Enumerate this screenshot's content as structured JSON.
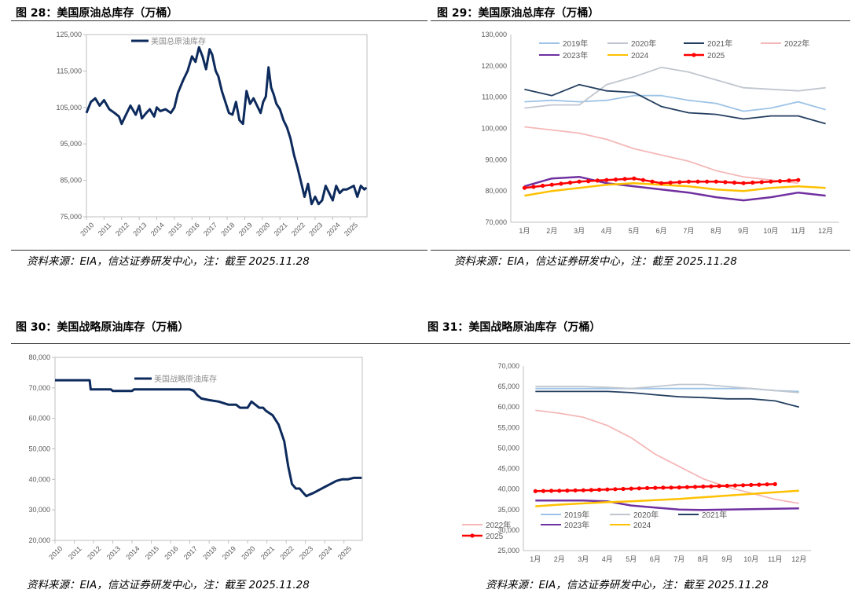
{
  "figures": [
    {
      "title": "图 28：美国原油总库存（万桶）",
      "source": "资料来源：EIA，信达证券研发中心，注：截至 2025.11.28"
    },
    {
      "title": "图 29：美国原油总库存（万桶）",
      "source": "资料来源：EIA，信达证券研发中心，注：截至 2025.11.28"
    },
    {
      "title": "图 30：美国战略原油库存（万桶）",
      "source": "资料来源：EIA，信达证券研发中心，注：截至 2025.11.28"
    },
    {
      "title": "图 31：美国战略原油库存（万桶）",
      "source": "资料来源：EIA，信达证券研发中心，注：截至 2025.11.28"
    }
  ],
  "chart_data": [
    {
      "type": "line",
      "legend_position": "top-center",
      "grid": false,
      "x_tick_labels": [
        "2010",
        "2011",
        "2012",
        "2013",
        "2014",
        "2015",
        "2016",
        "2017",
        "2018",
        "2019",
        "2020",
        "2021",
        "2022",
        "2023",
        "2024",
        "2025"
      ],
      "y_tick_labels": [
        "75,000",
        "85,000",
        "95,000",
        "105,000",
        "115,000",
        "125,000"
      ],
      "ylim": [
        75000,
        125000
      ],
      "xlim": [
        2010,
        2025.95
      ],
      "series": [
        {
          "name": "美国总原油库存",
          "color": "#0d2a5c",
          "x": [
            2010.0,
            2010.25,
            2010.5,
            2010.75,
            2011.0,
            2011.3,
            2011.6,
            2011.85,
            2012.0,
            2012.2,
            2012.5,
            2012.8,
            2013.0,
            2013.15,
            2013.4,
            2013.6,
            2013.85,
            2014.0,
            2014.2,
            2014.5,
            2014.8,
            2015.0,
            2015.2,
            2015.5,
            2015.75,
            2016.0,
            2016.2,
            2016.4,
            2016.6,
            2016.8,
            2017.0,
            2017.15,
            2017.35,
            2017.5,
            2017.7,
            2017.9,
            2018.1,
            2018.3,
            2018.5,
            2018.7,
            2018.9,
            2019.1,
            2019.3,
            2019.5,
            2019.7,
            2019.9,
            2020.05,
            2020.2,
            2020.35,
            2020.5,
            2020.65,
            2020.8,
            2021.0,
            2021.2,
            2021.4,
            2021.6,
            2021.8,
            2022.0,
            2022.2,
            2022.4,
            2022.6,
            2022.8,
            2023.0,
            2023.2,
            2023.4,
            2023.6,
            2023.8,
            2024.0,
            2024.2,
            2024.4,
            2024.6,
            2024.8,
            2025.0,
            2025.2,
            2025.4,
            2025.6,
            2025.8,
            2025.92
          ],
          "y": [
            103500,
            106500,
            107500,
            105500,
            107000,
            104500,
            103500,
            102500,
            100500,
            102500,
            105500,
            103000,
            105500,
            102000,
            103500,
            104500,
            102500,
            105000,
            104000,
            104500,
            103500,
            105000,
            109000,
            112500,
            115000,
            119000,
            117500,
            121500,
            119000,
            115500,
            121000,
            119500,
            115000,
            113500,
            109500,
            106500,
            103500,
            103000,
            106500,
            101500,
            100500,
            109500,
            106000,
            107500,
            105500,
            103500,
            106500,
            108000,
            116000,
            110500,
            108500,
            106000,
            104500,
            101500,
            99500,
            96500,
            92000,
            88500,
            84500,
            80500,
            84000,
            78500,
            80500,
            78500,
            79500,
            83500,
            81500,
            79500,
            83500,
            81500,
            82500,
            82500,
            83000,
            83500,
            80500,
            83500,
            82500,
            83000
          ]
        }
      ]
    },
    {
      "type": "line",
      "legend_position": "top",
      "grid": false,
      "categories": [
        "1月",
        "2月",
        "3月",
        "4月",
        "5月",
        "6月",
        "7月",
        "8月",
        "9月",
        "10月",
        "11月",
        "12月"
      ],
      "y_tick_labels": [
        "70,000",
        "80,000",
        "90,000",
        "100,000",
        "110,000",
        "120,000",
        "130,000"
      ],
      "ylim": [
        70000,
        130000
      ],
      "series": [
        {
          "name": "2019年",
          "color": "#9dc3e6",
          "values": [
            108500,
            109000,
            108500,
            109000,
            110500,
            110500,
            109000,
            108000,
            105500,
            106500,
            108500,
            106000
          ]
        },
        {
          "name": "2020年",
          "color": "#c0c6cf",
          "values": [
            106500,
            107500,
            107500,
            114000,
            116500,
            119500,
            118000,
            115500,
            113000,
            112500,
            112000,
            113000
          ]
        },
        {
          "name": "2021年",
          "color": "#243f60",
          "values": [
            112500,
            110500,
            114000,
            112000,
            111500,
            107000,
            105000,
            104500,
            103000,
            104000,
            104000,
            101500
          ]
        },
        {
          "name": "2022年",
          "color": "#f5b8b8",
          "values": [
            100500,
            99500,
            98500,
            96500,
            93500,
            91500,
            89500,
            86500,
            84500,
            83500,
            82500,
            null
          ]
        },
        {
          "name": "2023年",
          "color": "#7030a0",
          "values": [
            81500,
            84000,
            84500,
            82500,
            81500,
            80500,
            79500,
            78000,
            77000,
            78000,
            79500,
            78500
          ]
        },
        {
          "name": "2024",
          "color": "#ffc000",
          "values": [
            78500,
            80000,
            81000,
            82000,
            82500,
            82000,
            81500,
            80500,
            80000,
            81000,
            81500,
            81000
          ]
        },
        {
          "name": "2025",
          "color": "#ff0000",
          "values": [
            81000,
            82000,
            83000,
            83500,
            84000,
            82500,
            83000,
            83000,
            82500,
            83000,
            83500,
            null
          ]
        }
      ]
    },
    {
      "type": "line",
      "legend_position": "top-center",
      "grid": false,
      "x_tick_labels": [
        "2010",
        "2011",
        "2012",
        "2013",
        "2014",
        "2015",
        "2016",
        "2017",
        "2018",
        "2019",
        "2020",
        "2021",
        "2022",
        "2023",
        "2024",
        "2025"
      ],
      "y_tick_labels": [
        "20,000",
        "30,000",
        "40,000",
        "50,000",
        "60,000",
        "70,000",
        "80,000"
      ],
      "ylim": [
        20000,
        80000
      ],
      "xlim": [
        2010,
        2025.95
      ],
      "series": [
        {
          "name": "美国战略原油库存",
          "color": "#0d2a5c",
          "x": [
            2010.0,
            2011.8,
            2011.85,
            2012.9,
            2013.0,
            2014.0,
            2014.1,
            2015.6,
            2015.7,
            2017.0,
            2017.2,
            2017.4,
            2017.6,
            2018.0,
            2018.5,
            2019.0,
            2019.4,
            2019.6,
            2020.0,
            2020.2,
            2020.6,
            2020.8,
            2020.95,
            2021.3,
            2021.6,
            2021.9,
            2022.1,
            2022.3,
            2022.5,
            2022.7,
            2022.9,
            2023.05,
            2023.2,
            2023.4,
            2023.7,
            2024.0,
            2024.3,
            2024.6,
            2024.9,
            2025.2,
            2025.5,
            2025.92
          ],
          "y": [
            72500,
            72500,
            69500,
            69500,
            69000,
            69000,
            69500,
            69500,
            69500,
            69500,
            69000,
            67500,
            66500,
            66000,
            65500,
            64500,
            64500,
            63500,
            63500,
            65500,
            63500,
            63500,
            62500,
            61000,
            58000,
            52500,
            44500,
            38500,
            37000,
            37000,
            35500,
            34500,
            35000,
            35500,
            36500,
            37500,
            38500,
            39500,
            40000,
            40000,
            40500,
            40500
          ]
        }
      ]
    },
    {
      "type": "line",
      "legend_position": "bottom",
      "grid": false,
      "categories": [
        "1月",
        "2月",
        "3月",
        "4月",
        "5月",
        "6月",
        "7月",
        "8月",
        "9月",
        "10月",
        "11月",
        "12月"
      ],
      "y_tick_labels": [
        "25,000",
        "30,000",
        "35,000",
        "40,000",
        "45,000",
        "50,000",
        "55,000",
        "60,000",
        "65,000",
        "70,000"
      ],
      "ylim": [
        25000,
        70000
      ],
      "series": [
        {
          "name": "2019年",
          "color": "#9dc3e6",
          "values": [
            64500,
            64500,
            64500,
            64500,
            64500,
            64500,
            64500,
            64500,
            64500,
            64500,
            64000,
            63800
          ]
        },
        {
          "name": "2020年",
          "color": "#c0c6cf",
          "values": [
            65000,
            65000,
            65000,
            64800,
            64500,
            65000,
            65500,
            65500,
            65000,
            64500,
            64000,
            63500
          ]
        },
        {
          "name": "2021年",
          "color": "#243f60",
          "values": [
            63800,
            63800,
            63800,
            63800,
            63500,
            63000,
            62500,
            62300,
            62000,
            62000,
            61500,
            60000
          ]
        },
        {
          "name": "2022年",
          "color": "#f5b8b8",
          "values": [
            59200,
            58500,
            57500,
            55500,
            52500,
            48500,
            45500,
            42500,
            40500,
            39000,
            37500,
            36500
          ]
        },
        {
          "name": "2023年",
          "color": "#7030a0",
          "values": [
            37200,
            37200,
            37200,
            37000,
            36000,
            35500,
            35000,
            34900,
            35000,
            35100,
            35200,
            35300
          ]
        },
        {
          "name": "2024",
          "color": "#ffc000",
          "values": [
            35800,
            36200,
            36500,
            36800,
            37000,
            37300,
            37600,
            38000,
            38400,
            38800,
            39200,
            39600
          ]
        },
        {
          "name": "2025",
          "color": "#ff0000",
          "values": [
            39500,
            39600,
            39700,
            39900,
            40100,
            40300,
            40400,
            40600,
            40800,
            41000,
            41200,
            null
          ]
        }
      ]
    }
  ]
}
